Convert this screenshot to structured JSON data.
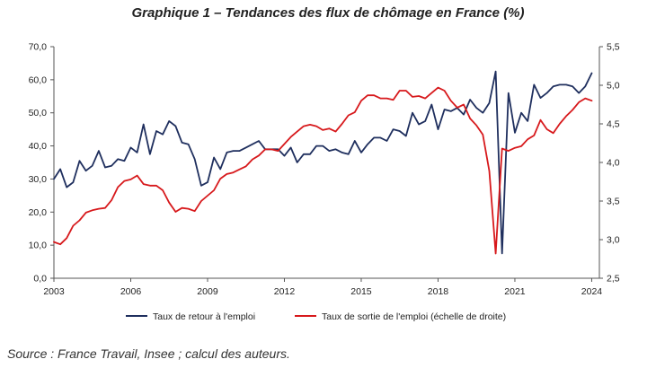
{
  "title": "Graphique 1 – Tendances des flux de chômage en France (%)",
  "source": "Source : France Travail, Insee ; calcul des auteurs.",
  "colors": {
    "retour": "#1f2f5e",
    "sortie": "#d7191c",
    "axis": "#555555",
    "grid": "#e6e6e6"
  },
  "chart_data": {
    "type": "line",
    "title": "Graphique 1 – Tendances des flux de chômage en France (%)",
    "xlim": [
      2003,
      2024.3
    ],
    "x_ticks": [
      2003,
      2006,
      2009,
      2012,
      2015,
      2018,
      2021,
      2024
    ],
    "y_left": {
      "lim": [
        0,
        70
      ],
      "ticks": [
        "0,0",
        "10,0",
        "20,0",
        "30,0",
        "40,0",
        "50,0",
        "60,0",
        "70,0"
      ]
    },
    "y_right": {
      "lim": [
        2.5,
        5.5
      ],
      "ticks": [
        "2,5",
        "3,0",
        "3,5",
        "4,0",
        "4,5",
        "5,0",
        "5,5"
      ]
    },
    "grid": false,
    "legend_position": "bottom",
    "series": [
      {
        "name": "Taux de retour à l'emploi",
        "axis": "left",
        "x": [
          2003.0,
          2003.25,
          2003.5,
          2003.75,
          2004.0,
          2004.25,
          2004.5,
          2004.75,
          2005.0,
          2005.25,
          2005.5,
          2005.75,
          2006.0,
          2006.25,
          2006.5,
          2006.75,
          2007.0,
          2007.25,
          2007.5,
          2007.75,
          2008.0,
          2008.25,
          2008.5,
          2008.75,
          2009.0,
          2009.25,
          2009.5,
          2009.75,
          2010.0,
          2010.25,
          2010.5,
          2010.75,
          2011.0,
          2011.25,
          2011.5,
          2011.75,
          2012.0,
          2012.25,
          2012.5,
          2012.75,
          2013.0,
          2013.25,
          2013.5,
          2013.75,
          2014.0,
          2014.25,
          2014.5,
          2014.75,
          2015.0,
          2015.25,
          2015.5,
          2015.75,
          2016.0,
          2016.25,
          2016.5,
          2016.75,
          2017.0,
          2017.25,
          2017.5,
          2017.75,
          2018.0,
          2018.25,
          2018.5,
          2018.75,
          2019.0,
          2019.25,
          2019.5,
          2019.75,
          2020.0,
          2020.25,
          2020.5,
          2020.75,
          2021.0,
          2021.25,
          2021.5,
          2021.75,
          2022.0,
          2022.25,
          2022.5,
          2022.75,
          2023.0,
          2023.25,
          2023.5,
          2023.75,
          2024.0
        ],
        "values": [
          30.0,
          33.0,
          27.5,
          29.0,
          35.5,
          32.5,
          34.0,
          38.5,
          33.5,
          34.0,
          36.0,
          35.5,
          39.5,
          38.0,
          46.5,
          37.5,
          44.5,
          43.5,
          47.5,
          46.0,
          41.0,
          40.5,
          36.0,
          28.0,
          29.0,
          36.5,
          33.0,
          38.0,
          38.5,
          38.5,
          39.5,
          40.5,
          41.5,
          39.0,
          39.0,
          39.0,
          37.0,
          39.5,
          35.0,
          37.5,
          37.5,
          40.0,
          40.0,
          38.5,
          39.0,
          38.0,
          37.5,
          41.5,
          38.0,
          40.5,
          42.5,
          42.5,
          41.5,
          45.0,
          44.5,
          43.0,
          50.0,
          46.5,
          47.5,
          52.5,
          45.0,
          51.0,
          50.5,
          51.5,
          49.5,
          54.0,
          51.5,
          50.0,
          53.0,
          62.5,
          7.5,
          56.0,
          44.0,
          50.0,
          47.5,
          58.5,
          54.5,
          56.0,
          58.0,
          58.5,
          58.5,
          58.0,
          56.0,
          58.0,
          62.0
        ]
      },
      {
        "name": "Taux de sortie de l'emploi (échelle de droite)",
        "axis": "right",
        "x": [
          2003.0,
          2003.25,
          2003.5,
          2003.75,
          2004.0,
          2004.25,
          2004.5,
          2004.75,
          2005.0,
          2005.25,
          2005.5,
          2005.75,
          2006.0,
          2006.25,
          2006.5,
          2006.75,
          2007.0,
          2007.25,
          2007.5,
          2007.75,
          2008.0,
          2008.25,
          2008.5,
          2008.75,
          2009.0,
          2009.25,
          2009.5,
          2009.75,
          2010.0,
          2010.25,
          2010.5,
          2010.75,
          2011.0,
          2011.25,
          2011.5,
          2011.75,
          2012.0,
          2012.25,
          2012.5,
          2012.75,
          2013.0,
          2013.25,
          2013.5,
          2013.75,
          2014.0,
          2014.25,
          2014.5,
          2014.75,
          2015.0,
          2015.25,
          2015.5,
          2015.75,
          2016.0,
          2016.25,
          2016.5,
          2016.75,
          2017.0,
          2017.25,
          2017.5,
          2017.75,
          2018.0,
          2018.25,
          2018.5,
          2018.75,
          2019.0,
          2019.25,
          2019.5,
          2019.75,
          2020.0,
          2020.25,
          2020.5,
          2020.75,
          2021.0,
          2021.25,
          2021.5,
          2021.75,
          2022.0,
          2022.25,
          2022.5,
          2022.75,
          2023.0,
          2023.25,
          2023.5,
          2023.75,
          2024.0
        ],
        "values": [
          2.97,
          2.94,
          3.02,
          3.18,
          3.25,
          3.35,
          3.38,
          3.4,
          3.41,
          3.51,
          3.68,
          3.76,
          3.78,
          3.83,
          3.72,
          3.7,
          3.7,
          3.64,
          3.48,
          3.36,
          3.41,
          3.4,
          3.37,
          3.5,
          3.57,
          3.64,
          3.79,
          3.85,
          3.87,
          3.91,
          3.95,
          4.04,
          4.09,
          4.17,
          4.17,
          4.15,
          4.24,
          4.33,
          4.4,
          4.47,
          4.49,
          4.47,
          4.42,
          4.44,
          4.4,
          4.5,
          4.61,
          4.65,
          4.8,
          4.87,
          4.87,
          4.83,
          4.83,
          4.81,
          4.93,
          4.93,
          4.85,
          4.86,
          4.83,
          4.9,
          4.97,
          4.93,
          4.8,
          4.71,
          4.75,
          4.57,
          4.48,
          4.36,
          3.89,
          2.82,
          4.18,
          4.15,
          4.19,
          4.21,
          4.3,
          4.35,
          4.55,
          4.43,
          4.38,
          4.5,
          4.6,
          4.68,
          4.78,
          4.83,
          4.8
        ]
      }
    ]
  }
}
